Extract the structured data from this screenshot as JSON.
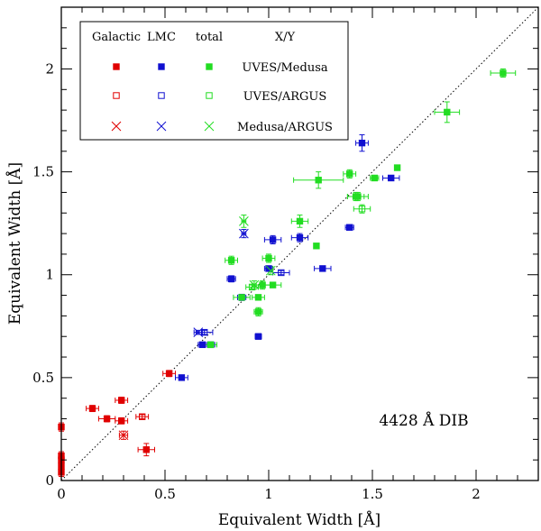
{
  "chart_data": {
    "type": "scatter",
    "title": "",
    "xlabel": "Equivalent Width [Å]",
    "ylabel": "Equivalent Width [Å]",
    "xlim": [
      0,
      2.3
    ],
    "ylim": [
      0,
      2.3
    ],
    "xticks": [
      0,
      0.5,
      1,
      1.5,
      2
    ],
    "yticks": [
      0,
      0.5,
      1,
      1.5,
      2
    ],
    "x_tick_labels": [
      "0",
      "0.5",
      "1",
      "1.5",
      "2"
    ],
    "y_tick_labels": [
      "0",
      "0.5",
      "1",
      "1.5",
      "2"
    ],
    "reference_line": "y = x",
    "annotation": "4428 Å DIB",
    "legend": {
      "placement": "top-left",
      "headers": {
        "galactic": "Galactic",
        "lmc": "LMC",
        "total": "total",
        "ratio": "X/Y"
      },
      "rows": [
        {
          "label": "UVES/Medusa",
          "marker": "filled-square"
        },
        {
          "label": "UVES/ARGUS",
          "marker": "open-square"
        },
        {
          "label": "Medusa/ARGUS",
          "marker": "cross"
        }
      ]
    },
    "colors": {
      "galactic": "#e00000",
      "lmc": "#1010d0",
      "total": "#22dd22"
    },
    "series": [
      {
        "name": "Galactic UVES/Medusa",
        "group": "galactic",
        "marker": "filled-square",
        "x": [
          0,
          0,
          0,
          0,
          0,
          0.15,
          0.22,
          0.29,
          0.29,
          0.41,
          0.52
        ],
        "y": [
          0.26,
          0.12,
          0.1,
          0.07,
          0.04,
          0.35,
          0.3,
          0.29,
          0.39,
          0.15,
          0.52
        ],
        "xerr": [
          0,
          0,
          0,
          0,
          0,
          0.03,
          0.04,
          0.03,
          0.03,
          0.04,
          0.03
        ],
        "yerr": [
          0.02,
          0.02,
          0.02,
          0.02,
          0.02,
          0.015,
          0.015,
          0.015,
          0.015,
          0.03,
          0.015
        ]
      },
      {
        "name": "Galactic UVES/ARGUS",
        "group": "galactic",
        "marker": "open-square",
        "x": [
          0.39
        ],
        "y": [
          0.31
        ],
        "xerr": [
          0.03
        ],
        "yerr": [
          0.01
        ]
      },
      {
        "name": "Galactic Medusa/ARGUS",
        "group": "galactic",
        "marker": "cross",
        "x": [
          0.3
        ],
        "y": [
          0.22
        ],
        "xerr": [
          0.02
        ],
        "yerr": [
          0.02
        ]
      },
      {
        "name": "LMC UVES/Medusa",
        "group": "lmc",
        "marker": "filled-square",
        "x": [
          0.58,
          0.68,
          0.72,
          0.82,
          0.87,
          0.95,
          1.0,
          1.02,
          1.15,
          1.26,
          1.39,
          1.45,
          1.59
        ],
        "y": [
          0.5,
          0.66,
          0.66,
          0.98,
          0.89,
          0.7,
          1.03,
          1.17,
          1.18,
          1.03,
          1.23,
          1.64,
          1.47
        ],
        "xerr": [
          0.03,
          0.02,
          0.02,
          0.02,
          0.02,
          0.015,
          0.02,
          0.04,
          0.04,
          0.04,
          0.02,
          0.03,
          0.04
        ],
        "yerr": [
          0.01,
          0.01,
          0.01,
          0.015,
          0.015,
          0.01,
          0.01,
          0.02,
          0.02,
          0.01,
          0.01,
          0.04,
          0.01
        ]
      },
      {
        "name": "LMC UVES/ARGUS",
        "group": "lmc",
        "marker": "open-square",
        "x": [
          0.69,
          1.06
        ],
        "y": [
          0.72,
          1.01
        ],
        "xerr": [
          0.04,
          0.04
        ],
        "yerr": [
          0.01,
          0.01
        ]
      },
      {
        "name": "LMC Medusa/ARGUS",
        "group": "lmc",
        "marker": "cross",
        "x": [
          0.66,
          0.88
        ],
        "y": [
          0.72,
          1.2
        ],
        "xerr": [
          0.02,
          0.01
        ],
        "yerr": [
          0.01,
          0.02
        ]
      },
      {
        "name": "total UVES/Medusa",
        "group": "total",
        "marker": "filled-square",
        "x": [
          0.72,
          0.82,
          0.87,
          0.95,
          0.95,
          0.97,
          1.0,
          1.02,
          1.15,
          1.23,
          1.24,
          1.39,
          1.42,
          1.43,
          1.51,
          1.62,
          1.86,
          2.13
        ],
        "y": [
          0.66,
          1.07,
          0.89,
          0.82,
          0.89,
          0.95,
          1.08,
          0.95,
          1.26,
          1.14,
          1.46,
          1.49,
          1.38,
          1.38,
          1.47,
          1.52,
          1.79,
          1.98
        ],
        "xerr": [
          0.03,
          0.03,
          0.04,
          0.02,
          0.03,
          0.04,
          0.03,
          0.04,
          0.04,
          0.01,
          0.12,
          0.03,
          0.04,
          0.05,
          0.02,
          0.01,
          0.06,
          0.06
        ],
        "yerr": [
          0.01,
          0.02,
          0.01,
          0.02,
          0.01,
          0.02,
          0.02,
          0.01,
          0.03,
          0.01,
          0.04,
          0.02,
          0.02,
          0.02,
          0.01,
          0.01,
          0.05,
          0.02
        ]
      },
      {
        "name": "total UVES/ARGUS",
        "group": "total",
        "marker": "open-square",
        "x": [
          1.45,
          0.92
        ],
        "y": [
          1.32,
          0.94
        ],
        "xerr": [
          0.04,
          0.03
        ],
        "yerr": [
          0.02,
          0.01
        ]
      },
      {
        "name": "total Medusa/ARGUS",
        "group": "total",
        "marker": "cross",
        "x": [
          0.88,
          1.01,
          0.93
        ],
        "y": [
          1.26,
          1.02,
          0.95
        ],
        "xerr": [
          0.01,
          0.01,
          0.01
        ],
        "yerr": [
          0.03,
          0.02,
          0.02
        ]
      }
    ]
  }
}
